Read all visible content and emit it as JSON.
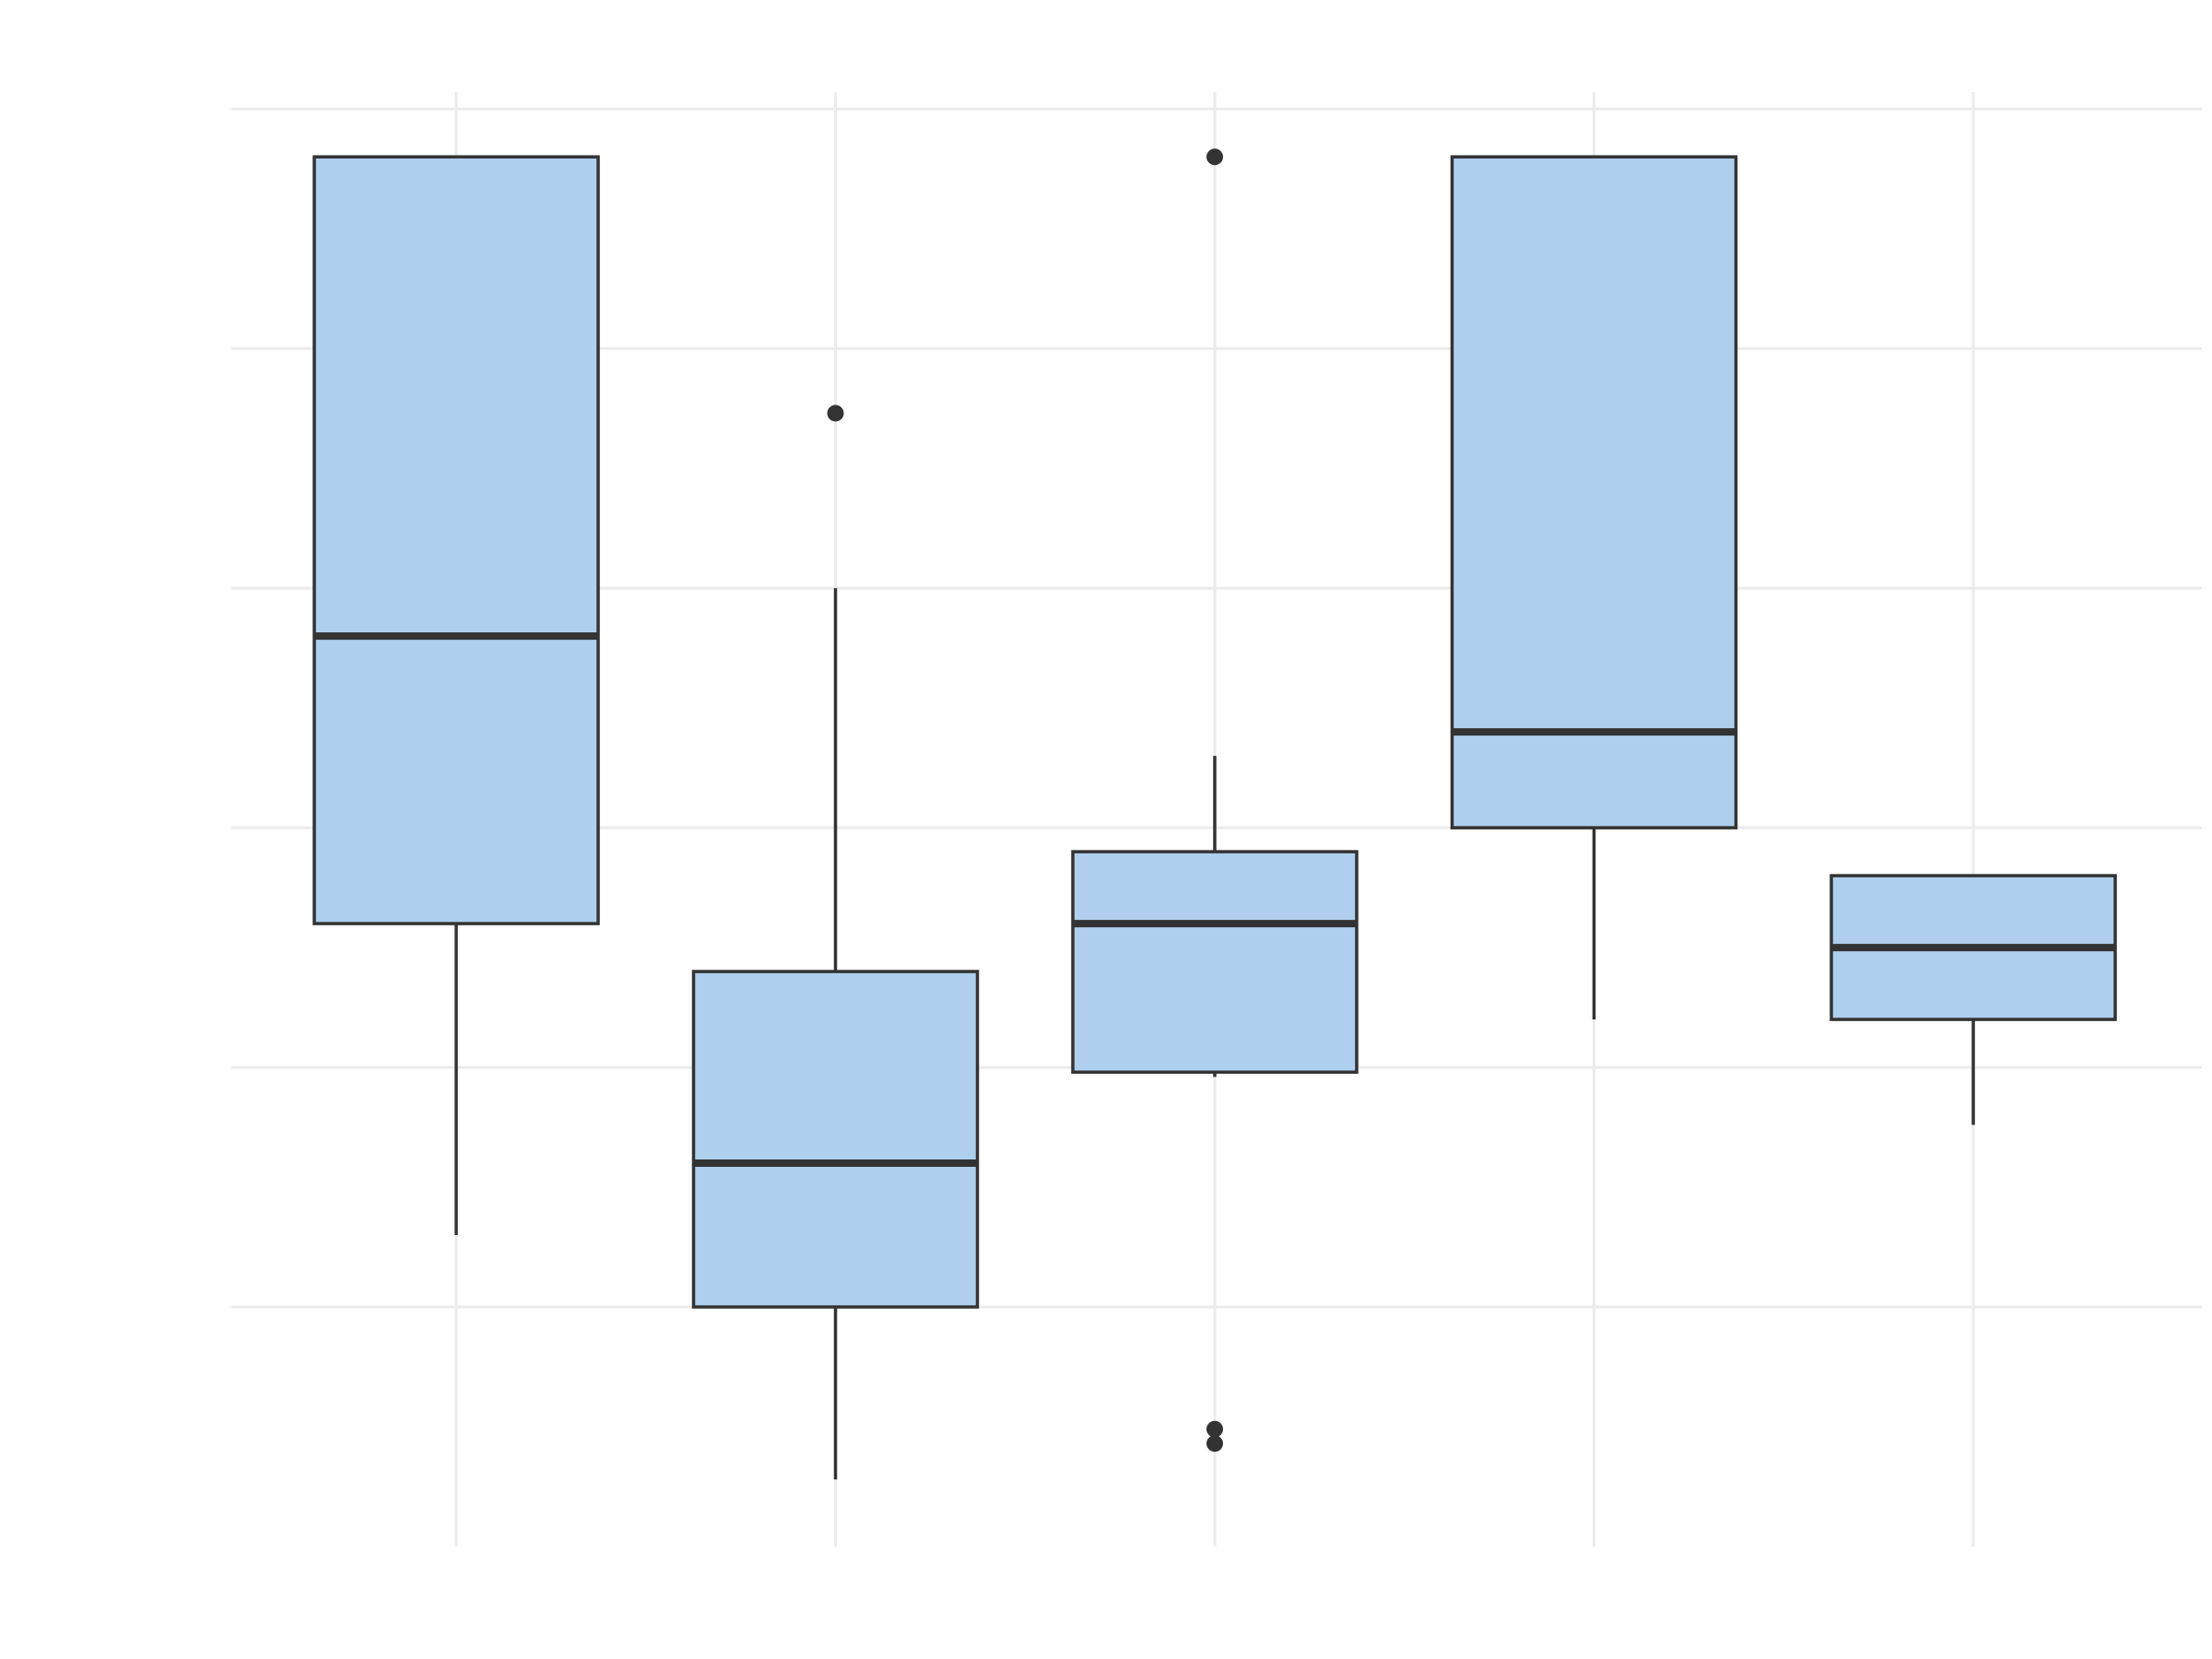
{
  "chart_data": {
    "type": "box",
    "categories": [
      null,
      null,
      null,
      null,
      null
    ],
    "boxes": [
      {
        "whisker_low": 0.3,
        "q1": 1.6,
        "median": 2.8,
        "q3": 4.8,
        "whisker_high": 4.8,
        "outliers": []
      },
      {
        "whisker_low": -0.72,
        "q1": 0,
        "median": 0.6,
        "q3": 1.4,
        "whisker_high": 3.0,
        "outliers": [
          3.73
        ]
      },
      {
        "whisker_low": 0.96,
        "q1": 0.98,
        "median": 1.6,
        "q3": 1.9,
        "whisker_high": 2.3,
        "outliers": [
          4.8,
          -0.51,
          -0.57
        ]
      },
      {
        "whisker_low": 1.2,
        "q1": 2.0,
        "median": 2.4,
        "q3": 4.8,
        "whisker_high": 4.8,
        "outliers": []
      },
      {
        "whisker_low": 0.76,
        "q1": 1.2,
        "median": 1.5,
        "q3": 1.8,
        "whisker_high": 1.8,
        "outliers": []
      }
    ],
    "color": "#aecfed",
    "edge_color": "#333333",
    "ylim": [
      -1,
      5.07
    ],
    "yticks": [
      0,
      1,
      2,
      3,
      4,
      5
    ],
    "grid": true
  }
}
